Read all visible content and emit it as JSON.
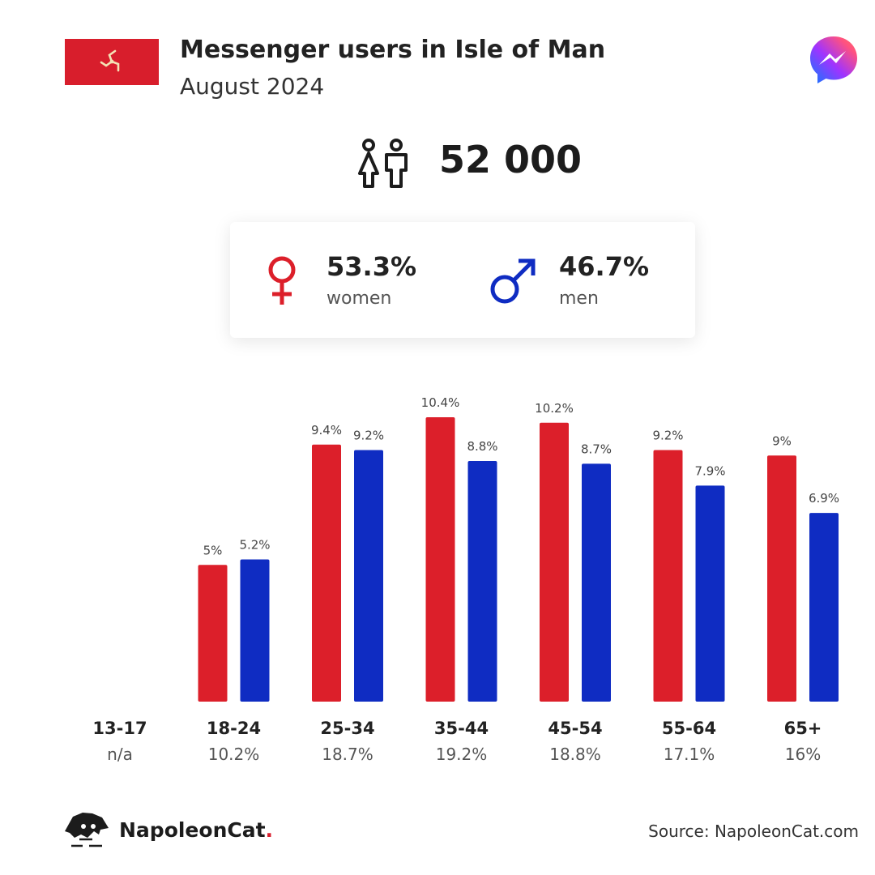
{
  "header": {
    "title": "Messenger users in Isle of Man",
    "subtitle": "August 2024"
  },
  "total": {
    "value": "52 000",
    "icon": "people-icon"
  },
  "gender": {
    "women": {
      "pct": "53.3%",
      "label": "women",
      "icon": "female-symbol-icon"
    },
    "men": {
      "pct": "46.7%",
      "label": "men",
      "icon": "male-symbol-icon"
    }
  },
  "colors": {
    "women": "#dc1f2a",
    "men": "#0f2cc2",
    "flag": "#d81e2c"
  },
  "chart_data": {
    "type": "bar",
    "categories": [
      "13-17",
      "18-24",
      "25-34",
      "35-44",
      "45-54",
      "55-64",
      "65+"
    ],
    "group_share": [
      "n/a",
      "10.2%",
      "18.7%",
      "19.2%",
      "18.8%",
      "17.1%",
      "16%"
    ],
    "series": [
      {
        "key": "women",
        "values": [
          null,
          5,
          9.4,
          10.4,
          10.2,
          9.2,
          9
        ],
        "labels": [
          "",
          "5%",
          "9.4%",
          "10.4%",
          "10.2%",
          "9.2%",
          "9%"
        ]
      },
      {
        "key": "men",
        "values": [
          null,
          5.2,
          9.2,
          8.8,
          8.7,
          7.9,
          6.9
        ],
        "labels": [
          "",
          "5.2%",
          "9.2%",
          "8.8%",
          "8.7%",
          "7.9%",
          "6.9%"
        ]
      }
    ],
    "ylim": [
      0,
      12
    ],
    "grid": false,
    "legend": "none"
  },
  "footer": {
    "brand_name": "NapoleonCat",
    "brand_dot": ".",
    "source": "Source: NapoleonCat.com"
  }
}
